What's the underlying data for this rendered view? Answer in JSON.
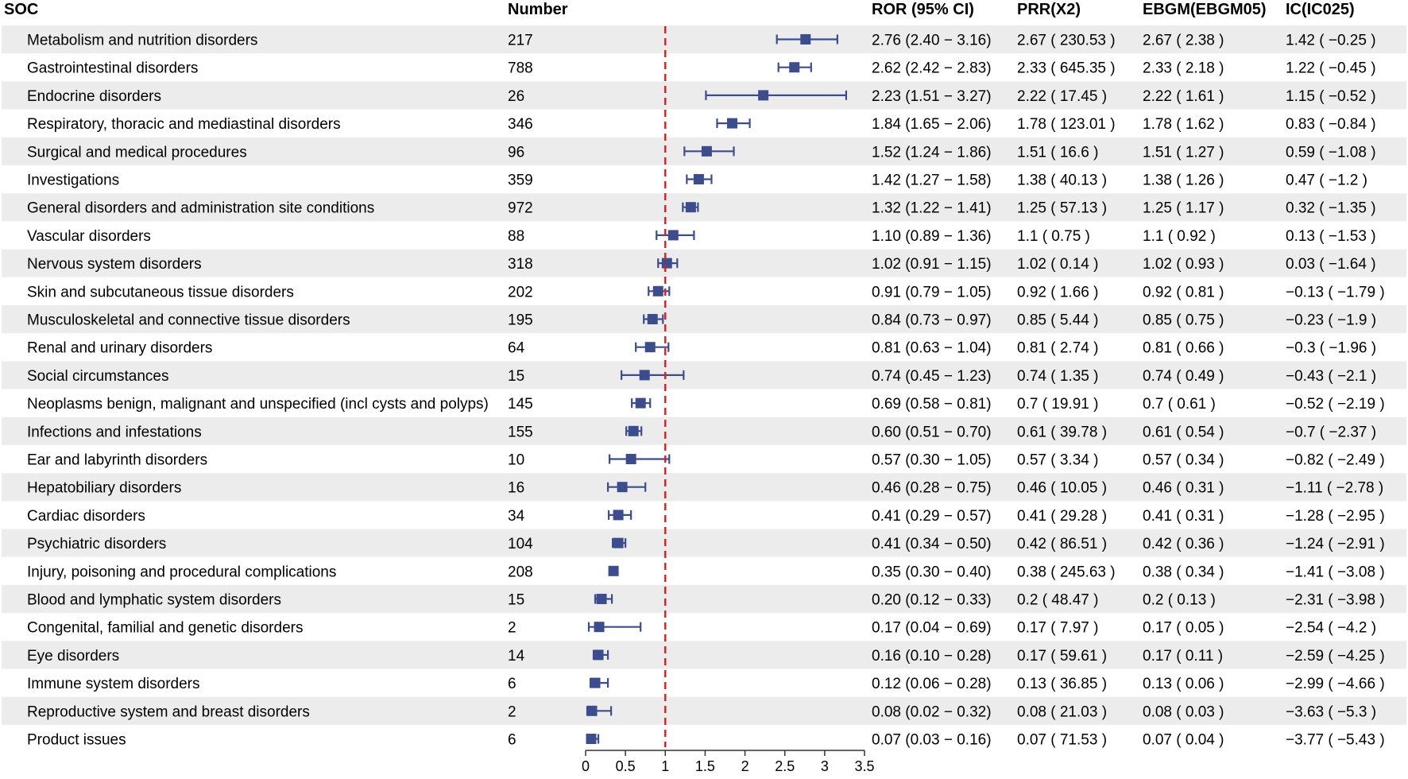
{
  "chart_data": {
    "type": "forest",
    "x_axis": {
      "min": 0,
      "max": 3.5,
      "ticks": [
        0,
        0.5,
        1,
        1.5,
        2,
        2.5,
        3,
        3.5
      ],
      "tick_labels": [
        "0",
        "0.5",
        "1",
        "1.5",
        "2",
        "2.5",
        "3",
        "3.5"
      ],
      "reference_line": 1
    },
    "headers": {
      "soc": "SOC",
      "number": "Number",
      "ror": "ROR (95% CI)",
      "prr": "PRR(X2)",
      "ebgm": "EBGM(EBGM05)",
      "ic": "IC(IC025)"
    },
    "colors": {
      "marker": "#3c4d8e",
      "reference_line": "#d42020",
      "stripe": "#ececec"
    },
    "rows": [
      {
        "soc": "Metabolism and nutrition disorders",
        "number": "217",
        "ror": 2.76,
        "ci_low": 2.4,
        "ci_high": 3.16,
        "ror_text": "2.76 (2.40 − 3.16)",
        "prr_text": "2.67 ( 230.53 )",
        "ebgm_text": "2.67 ( 2.38 )",
        "ic_text": "1.42 ( −0.25 )"
      },
      {
        "soc": "Gastrointestinal disorders",
        "number": "788",
        "ror": 2.62,
        "ci_low": 2.42,
        "ci_high": 2.83,
        "ror_text": "2.62 (2.42 − 2.83)",
        "prr_text": "2.33 ( 645.35 )",
        "ebgm_text": "2.33 ( 2.18 )",
        "ic_text": "1.22 ( −0.45 )"
      },
      {
        "soc": "Endocrine disorders",
        "number": "26",
        "ror": 2.23,
        "ci_low": 1.51,
        "ci_high": 3.27,
        "ror_text": "2.23 (1.51 − 3.27)",
        "prr_text": "2.22 ( 17.45 )",
        "ebgm_text": "2.22 ( 1.61 )",
        "ic_text": "1.15 ( −0.52 )"
      },
      {
        "soc": "Respiratory, thoracic and mediastinal disorders",
        "number": "346",
        "ror": 1.84,
        "ci_low": 1.65,
        "ci_high": 2.06,
        "ror_text": "1.84 (1.65 − 2.06)",
        "prr_text": "1.78 ( 123.01 )",
        "ebgm_text": "1.78 ( 1.62 )",
        "ic_text": "0.83 ( −0.84 )"
      },
      {
        "soc": "Surgical and medical procedures",
        "number": "96",
        "ror": 1.52,
        "ci_low": 1.24,
        "ci_high": 1.86,
        "ror_text": "1.52 (1.24 − 1.86)",
        "prr_text": "1.51 ( 16.6 )",
        "ebgm_text": "1.51 ( 1.27 )",
        "ic_text": "0.59 ( −1.08 )"
      },
      {
        "soc": "Investigations",
        "number": "359",
        "ror": 1.42,
        "ci_low": 1.27,
        "ci_high": 1.58,
        "ror_text": "1.42 (1.27 − 1.58)",
        "prr_text": "1.38 ( 40.13 )",
        "ebgm_text": "1.38 ( 1.26 )",
        "ic_text": "0.47 ( −1.2 )"
      },
      {
        "soc": "General disorders and administration site conditions",
        "number": "972",
        "ror": 1.32,
        "ci_low": 1.22,
        "ci_high": 1.41,
        "ror_text": "1.32 (1.22 − 1.41)",
        "prr_text": "1.25 ( 57.13 )",
        "ebgm_text": "1.25 ( 1.17 )",
        "ic_text": "0.32 ( −1.35 )"
      },
      {
        "soc": "Vascular disorders",
        "number": "88",
        "ror": 1.1,
        "ci_low": 0.89,
        "ci_high": 1.36,
        "ror_text": "1.10 (0.89 − 1.36)",
        "prr_text": "1.1 ( 0.75 )",
        "ebgm_text": "1.1 ( 0.92 )",
        "ic_text": "0.13 ( −1.53 )"
      },
      {
        "soc": "Nervous system disorders",
        "number": "318",
        "ror": 1.02,
        "ci_low": 0.91,
        "ci_high": 1.15,
        "ror_text": "1.02 (0.91 − 1.15)",
        "prr_text": "1.02 ( 0.14 )",
        "ebgm_text": "1.02 ( 0.93 )",
        "ic_text": "0.03 ( −1.64 )"
      },
      {
        "soc": "Skin and subcutaneous tissue disorders",
        "number": "202",
        "ror": 0.91,
        "ci_low": 0.79,
        "ci_high": 1.05,
        "ror_text": "0.91 (0.79 − 1.05)",
        "prr_text": "0.92 ( 1.66 )",
        "ebgm_text": "0.92 ( 0.81 )",
        "ic_text": "−0.13 ( −1.79 )"
      },
      {
        "soc": "Musculoskeletal and connective tissue disorders",
        "number": "195",
        "ror": 0.84,
        "ci_low": 0.73,
        "ci_high": 0.97,
        "ror_text": "0.84 (0.73 − 0.97)",
        "prr_text": "0.85 ( 5.44 )",
        "ebgm_text": "0.85 ( 0.75 )",
        "ic_text": "−0.23 ( −1.9 )"
      },
      {
        "soc": "Renal and urinary disorders",
        "number": "64",
        "ror": 0.81,
        "ci_low": 0.63,
        "ci_high": 1.04,
        "ror_text": "0.81 (0.63 − 1.04)",
        "prr_text": "0.81 ( 2.74 )",
        "ebgm_text": "0.81 ( 0.66 )",
        "ic_text": "−0.3 ( −1.96 )"
      },
      {
        "soc": "Social circumstances",
        "number": "15",
        "ror": 0.74,
        "ci_low": 0.45,
        "ci_high": 1.23,
        "ror_text": "0.74 (0.45 − 1.23)",
        "prr_text": "0.74 ( 1.35 )",
        "ebgm_text": "0.74 ( 0.49 )",
        "ic_text": "−0.43 ( −2.1 )"
      },
      {
        "soc": "Neoplasms benign, malignant and unspecified (incl cysts and polyps)",
        "number": "145",
        "ror": 0.69,
        "ci_low": 0.58,
        "ci_high": 0.81,
        "ror_text": "0.69 (0.58 − 0.81)",
        "prr_text": "0.7 ( 19.91 )",
        "ebgm_text": "0.7 ( 0.61 )",
        "ic_text": "−0.52 ( −2.19 )"
      },
      {
        "soc": "Infections and infestations",
        "number": "155",
        "ror": 0.6,
        "ci_low": 0.51,
        "ci_high": 0.7,
        "ror_text": "0.60 (0.51 − 0.70)",
        "prr_text": "0.61 ( 39.78 )",
        "ebgm_text": "0.61 ( 0.54 )",
        "ic_text": "−0.7 ( −2.37 )"
      },
      {
        "soc": "Ear and labyrinth disorders",
        "number": "10",
        "ror": 0.57,
        "ci_low": 0.3,
        "ci_high": 1.05,
        "ror_text": "0.57 (0.30 − 1.05)",
        "prr_text": "0.57 ( 3.34 )",
        "ebgm_text": "0.57 ( 0.34 )",
        "ic_text": "−0.82 ( −2.49 )"
      },
      {
        "soc": "Hepatobiliary disorders",
        "number": "16",
        "ror": 0.46,
        "ci_low": 0.28,
        "ci_high": 0.75,
        "ror_text": "0.46 (0.28 − 0.75)",
        "prr_text": "0.46 ( 10.05 )",
        "ebgm_text": "0.46 ( 0.31 )",
        "ic_text": "−1.11 ( −2.78 )"
      },
      {
        "soc": "Cardiac disorders",
        "number": "34",
        "ror": 0.41,
        "ci_low": 0.29,
        "ci_high": 0.57,
        "ror_text": "0.41 (0.29 − 0.57)",
        "prr_text": "0.41 ( 29.28 )",
        "ebgm_text": "0.41 ( 0.31 )",
        "ic_text": "−1.28 ( −2.95 )"
      },
      {
        "soc": "Psychiatric disorders",
        "number": "104",
        "ror": 0.41,
        "ci_low": 0.34,
        "ci_high": 0.5,
        "ror_text": "0.41 (0.34 − 0.50)",
        "prr_text": "0.42 ( 86.51 )",
        "ebgm_text": "0.42 ( 0.36 )",
        "ic_text": "−1.24 ( −2.91 )"
      },
      {
        "soc": "Injury, poisoning and procedural complications",
        "number": "208",
        "ror": 0.35,
        "ci_low": 0.3,
        "ci_high": 0.4,
        "ror_text": "0.35 (0.30 − 0.40)",
        "prr_text": "0.38 ( 245.63 )",
        "ebgm_text": "0.38 ( 0.34 )",
        "ic_text": "−1.41 ( −3.08 )"
      },
      {
        "soc": "Blood and lymphatic system disorders",
        "number": "15",
        "ror": 0.2,
        "ci_low": 0.12,
        "ci_high": 0.33,
        "ror_text": "0.20 (0.12 − 0.33)",
        "prr_text": "0.2 ( 48.47 )",
        "ebgm_text": "0.2 ( 0.13 )",
        "ic_text": "−2.31 ( −3.98 )"
      },
      {
        "soc": "Congenital, familial and genetic disorders",
        "number": "2",
        "ror": 0.17,
        "ci_low": 0.04,
        "ci_high": 0.69,
        "ror_text": "0.17 (0.04 − 0.69)",
        "prr_text": "0.17 ( 7.97 )",
        "ebgm_text": "0.17 ( 0.05 )",
        "ic_text": "−2.54 ( −4.2 )"
      },
      {
        "soc": "Eye disorders",
        "number": "14",
        "ror": 0.16,
        "ci_low": 0.1,
        "ci_high": 0.28,
        "ror_text": "0.16 (0.10 − 0.28)",
        "prr_text": "0.17 ( 59.61 )",
        "ebgm_text": "0.17 ( 0.11 )",
        "ic_text": "−2.59 ( −4.25 )"
      },
      {
        "soc": "Immune system disorders",
        "number": "6",
        "ror": 0.12,
        "ci_low": 0.06,
        "ci_high": 0.28,
        "ror_text": "0.12 (0.06 − 0.28)",
        "prr_text": "0.13 ( 36.85 )",
        "ebgm_text": "0.13 ( 0.06 )",
        "ic_text": "−2.99 ( −4.66 )"
      },
      {
        "soc": "Reproductive system and breast disorders",
        "number": "2",
        "ror": 0.08,
        "ci_low": 0.02,
        "ci_high": 0.32,
        "ror_text": "0.08 (0.02 − 0.32)",
        "prr_text": "0.08 ( 21.03 )",
        "ebgm_text": "0.08 ( 0.03 )",
        "ic_text": "−3.63 ( −5.3 )"
      },
      {
        "soc": "Product issues",
        "number": "6",
        "ror": 0.07,
        "ci_low": 0.03,
        "ci_high": 0.16,
        "ror_text": "0.07 (0.03 − 0.16)",
        "prr_text": "0.07 ( 71.53 )",
        "ebgm_text": "0.07 ( 0.04 )",
        "ic_text": "−3.77 ( −5.43 )"
      }
    ]
  }
}
